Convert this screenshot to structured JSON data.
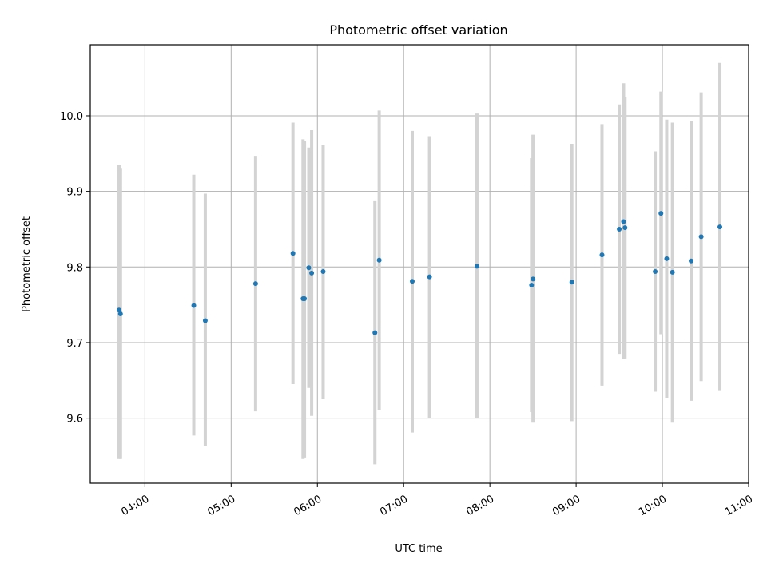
{
  "chart_data": {
    "type": "scatter",
    "title": "Photometric offset variation",
    "xlabel": "UTC time",
    "ylabel": "Photometric offset",
    "xlim": [
      "03:22",
      "11:00"
    ],
    "ylim": [
      9.514,
      10.094
    ],
    "grid": true,
    "x_ticks": [
      "04:00",
      "05:00",
      "06:00",
      "07:00",
      "08:00",
      "09:00",
      "10:00",
      "11:00"
    ],
    "y_ticks": [
      9.6,
      9.7,
      9.8,
      9.9,
      10.0
    ],
    "y_tick_labels": [
      "9.6",
      "9.7",
      "9.8",
      "9.9",
      "10.0"
    ],
    "colors": {
      "points": "#1f77b4",
      "error_bars": "#d3d3d3",
      "grid": "#b0b0b0"
    },
    "series": [
      {
        "points": [
          {
            "x": "03:42",
            "y": 9.743,
            "err_low": 9.546,
            "err_high": 9.935
          },
          {
            "x": "03:43",
            "y": 9.738,
            "err_low": 9.546,
            "err_high": 9.931
          },
          {
            "x": "04:34",
            "y": 9.749,
            "err_low": 9.577,
            "err_high": 9.922
          },
          {
            "x": "04:42",
            "y": 9.729,
            "err_low": 9.563,
            "err_high": 9.897
          },
          {
            "x": "05:17",
            "y": 9.778,
            "err_low": 9.609,
            "err_high": 9.947
          },
          {
            "x": "05:43",
            "y": 9.818,
            "err_low": 9.645,
            "err_high": 9.991
          },
          {
            "x": "05:50",
            "y": 9.758,
            "err_low": 9.546,
            "err_high": 9.969
          },
          {
            "x": "05:51",
            "y": 9.758,
            "err_low": 9.548,
            "err_high": 9.967
          },
          {
            "x": "05:54",
            "y": 9.799,
            "err_low": 9.64,
            "err_high": 9.958
          },
          {
            "x": "05:56",
            "y": 9.792,
            "err_low": 9.603,
            "err_high": 9.981
          },
          {
            "x": "06:04",
            "y": 9.794,
            "err_low": 9.626,
            "err_high": 9.962
          },
          {
            "x": "06:40",
            "y": 9.713,
            "err_low": 9.539,
            "err_high": 9.887
          },
          {
            "x": "06:43",
            "y": 9.809,
            "err_low": 9.611,
            "err_high": 10.007
          },
          {
            "x": "07:06",
            "y": 9.781,
            "err_low": 9.581,
            "err_high": 9.98
          },
          {
            "x": "07:18",
            "y": 9.787,
            "err_low": 9.6,
            "err_high": 9.973
          },
          {
            "x": "07:51",
            "y": 9.801,
            "err_low": 9.6,
            "err_high": 10.003
          },
          {
            "x": "08:29",
            "y": 9.776,
            "err_low": 9.608,
            "err_high": 9.944
          },
          {
            "x": "08:30",
            "y": 9.784,
            "err_low": 9.594,
            "err_high": 9.975
          },
          {
            "x": "08:57",
            "y": 9.78,
            "err_low": 9.596,
            "err_high": 9.963
          },
          {
            "x": "09:18",
            "y": 9.816,
            "err_low": 9.643,
            "err_high": 9.989
          },
          {
            "x": "09:30",
            "y": 9.85,
            "err_low": 9.685,
            "err_high": 10.015
          },
          {
            "x": "09:33",
            "y": 9.86,
            "err_low": 9.678,
            "err_high": 10.043
          },
          {
            "x": "09:34",
            "y": 9.852,
            "err_low": 9.679,
            "err_high": 10.025
          },
          {
            "x": "09:55",
            "y": 9.794,
            "err_low": 9.635,
            "err_high": 9.953
          },
          {
            "x": "09:59",
            "y": 9.871,
            "err_low": 9.711,
            "err_high": 10.032
          },
          {
            "x": "10:03",
            "y": 9.811,
            "err_low": 9.627,
            "err_high": 9.995
          },
          {
            "x": "10:07",
            "y": 9.793,
            "err_low": 9.594,
            "err_high": 9.991
          },
          {
            "x": "10:20",
            "y": 9.808,
            "err_low": 9.623,
            "err_high": 9.993
          },
          {
            "x": "10:27",
            "y": 9.84,
            "err_low": 9.649,
            "err_high": 10.031
          },
          {
            "x": "10:40",
            "y": 9.853,
            "err_low": 9.637,
            "err_high": 10.07
          }
        ]
      }
    ]
  }
}
